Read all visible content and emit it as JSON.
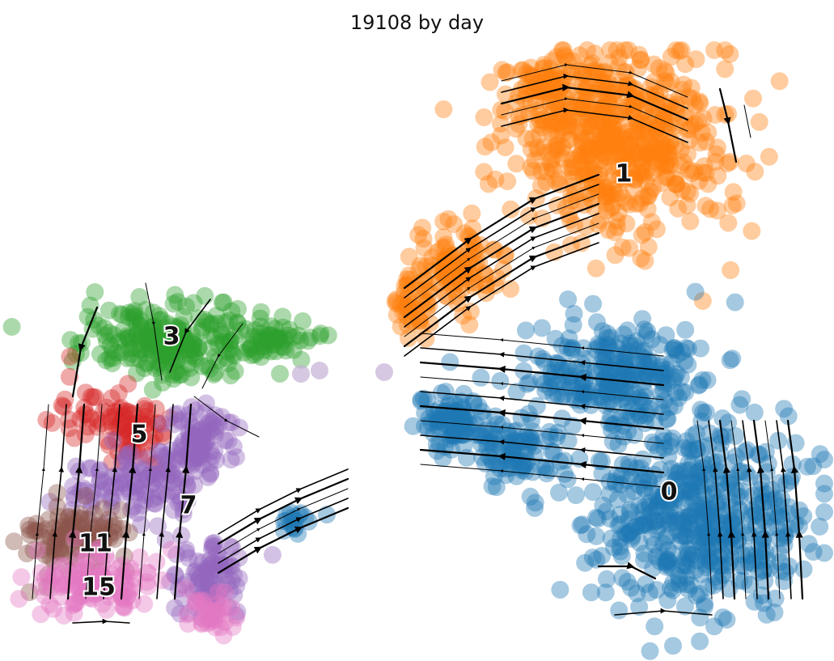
{
  "chart_data": {
    "type": "scatter",
    "title": "19108 by day",
    "xlabel": "",
    "ylabel": "",
    "axes_visible": false,
    "grid": false,
    "legend": "on data",
    "overlay": "velocity streamlines with arrowheads",
    "point_alpha": 0.4,
    "clusters": [
      {
        "label": "0",
        "color": "#1f77b4",
        "label_pos": [
          827,
          609
        ]
      },
      {
        "label": "1",
        "color": "#ff7f0e",
        "label_pos": [
          771,
          216
        ]
      },
      {
        "label": "3",
        "color": "#2ca02c",
        "label_pos": [
          212,
          417
        ]
      },
      {
        "label": "5",
        "color": "#d62728",
        "label_pos": [
          172,
          538
        ]
      },
      {
        "label": "7",
        "color": "#9467bd",
        "label_pos": [
          233,
          626
        ]
      },
      {
        "label": "11",
        "color": "#8c564b",
        "label_pos": [
          118,
          673
        ]
      },
      {
        "label": "15",
        "color": "#e377c2",
        "label_pos": [
          122,
          727
        ]
      }
    ]
  }
}
